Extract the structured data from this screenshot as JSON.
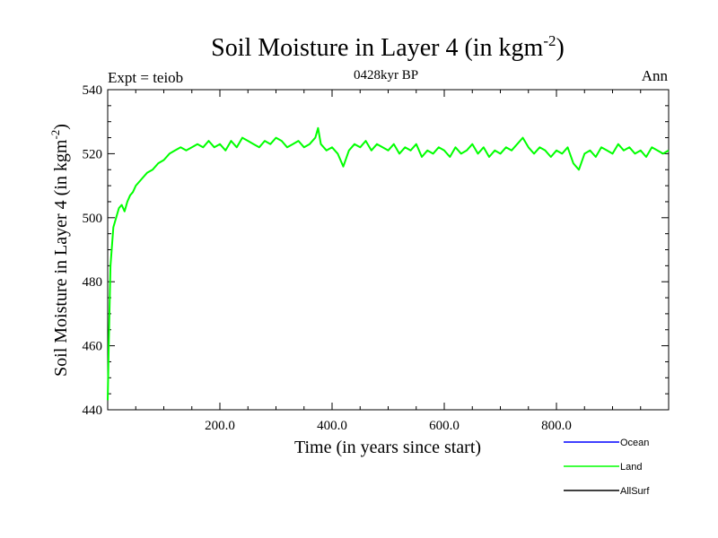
{
  "chart_data": {
    "type": "line",
    "title": "Soil Moisture in Layer 4 (in kgm",
    "title_superscript": "-2",
    "title_suffix": ")",
    "subtitle": "0428kyr BP",
    "left_label": "Expt = teiob",
    "right_label": "Ann",
    "xlabel": "Time (in years since start)",
    "ylabel": "Soil Moisture in Layer 4 (in kgm",
    "ylabel_superscript": "-2",
    "ylabel_suffix": ")",
    "xlim": [
      0,
      1000
    ],
    "ylim": [
      440,
      540
    ],
    "x_ticks": [
      200,
      400,
      600,
      800
    ],
    "x_tick_labels": [
      "200.0",
      "400.0",
      "600.0",
      "800.0"
    ],
    "y_ticks": [
      440,
      460,
      480,
      500,
      520,
      540
    ],
    "y_tick_labels": [
      "440",
      "460",
      "480",
      "500",
      "520",
      "540"
    ],
    "legend": [
      {
        "name": "Ocean",
        "color": "#0000ff"
      },
      {
        "name": "Land",
        "color": "#00ff00"
      },
      {
        "name": "AllSurf",
        "color": "#000000"
      }
    ],
    "series": [
      {
        "name": "Land",
        "color": "#00ff00",
        "x": [
          0,
          2,
          5,
          10,
          15,
          20,
          25,
          30,
          35,
          40,
          45,
          50,
          60,
          70,
          80,
          90,
          100,
          110,
          120,
          130,
          140,
          150,
          160,
          170,
          180,
          190,
          200,
          210,
          220,
          230,
          240,
          250,
          260,
          270,
          280,
          290,
          300,
          310,
          320,
          330,
          340,
          350,
          360,
          370,
          375,
          380,
          390,
          400,
          410,
          420,
          430,
          440,
          450,
          460,
          470,
          480,
          490,
          500,
          510,
          520,
          530,
          540,
          550,
          560,
          570,
          580,
          590,
          600,
          610,
          620,
          630,
          640,
          650,
          660,
          670,
          680,
          690,
          700,
          710,
          720,
          730,
          740,
          750,
          760,
          770,
          780,
          790,
          800,
          810,
          820,
          830,
          840,
          850,
          860,
          870,
          880,
          890,
          900,
          910,
          920,
          930,
          940,
          950,
          960,
          970,
          980,
          990,
          1000
        ],
        "y": [
          443,
          462,
          485,
          497,
          500,
          503,
          504,
          502,
          505,
          507,
          508,
          510,
          512,
          514,
          515,
          517,
          518,
          520,
          521,
          522,
          521,
          522,
          523,
          522,
          524,
          522,
          523,
          521,
          524,
          522,
          525,
          524,
          523,
          522,
          524,
          523,
          525,
          524,
          522,
          523,
          524,
          522,
          523,
          525,
          528,
          523,
          521,
          522,
          520,
          516,
          521,
          523,
          522,
          524,
          521,
          523,
          522,
          521,
          523,
          520,
          522,
          521,
          523,
          519,
          521,
          520,
          522,
          521,
          519,
          522,
          520,
          521,
          523,
          520,
          522,
          519,
          521,
          520,
          522,
          521,
          523,
          525,
          522,
          520,
          522,
          521,
          519,
          521,
          520,
          522,
          517,
          515,
          520,
          521,
          519,
          522,
          521,
          520,
          523,
          521,
          522,
          520,
          521,
          519,
          522,
          521,
          520,
          521
        ]
      },
      {
        "name": "Ocean",
        "color": "#0000ff",
        "x": [],
        "y": []
      },
      {
        "name": "AllSurf",
        "color": "#000000",
        "x": [],
        "y": []
      }
    ]
  }
}
